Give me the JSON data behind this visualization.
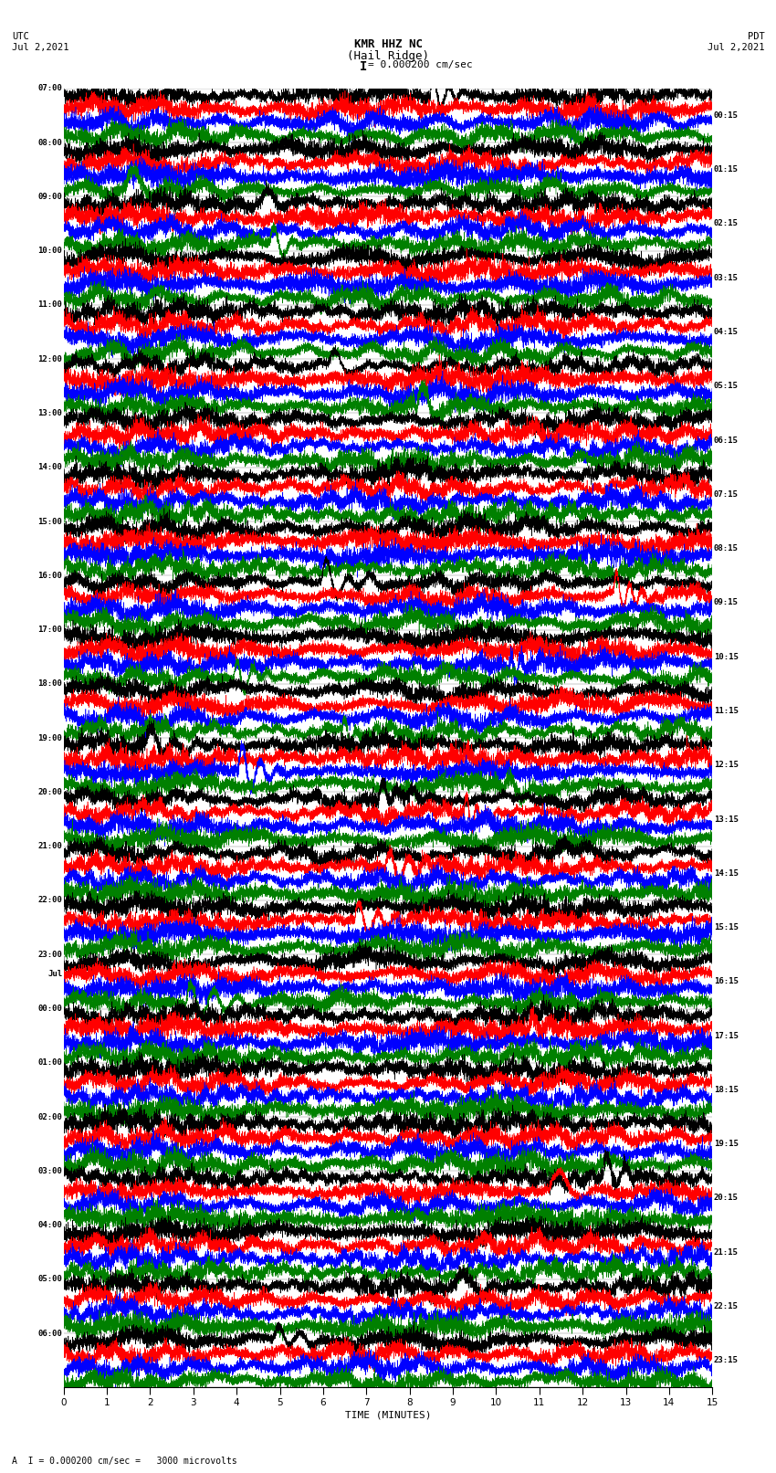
{
  "title_line1": "KMR HHZ NC",
  "title_line2": "(Hail Ridge)",
  "scale_label": "= 0.000200 cm/sec",
  "bottom_label": "A  I = 0.000200 cm/sec =   3000 microvolts",
  "left_header": "UTC",
  "left_date": "Jul 2,2021",
  "right_header": "PDT",
  "right_date": "Jul 2,2021",
  "xlabel": "TIME (MINUTES)",
  "colors": [
    "black",
    "red",
    "blue",
    "green"
  ],
  "bg_color": "#ffffff",
  "left_times_utc": [
    "07:00",
    "08:00",
    "09:00",
    "10:00",
    "11:00",
    "12:00",
    "13:00",
    "14:00",
    "15:00",
    "16:00",
    "17:00",
    "18:00",
    "19:00",
    "20:00",
    "21:00",
    "22:00",
    "23:00",
    "00:00",
    "01:00",
    "02:00",
    "03:00",
    "04:00",
    "05:00",
    "06:00"
  ],
  "right_times_pdt": [
    "00:15",
    "01:15",
    "02:15",
    "03:15",
    "04:15",
    "05:15",
    "06:15",
    "07:15",
    "08:15",
    "09:15",
    "10:15",
    "11:15",
    "12:15",
    "13:15",
    "14:15",
    "15:15",
    "16:15",
    "17:15",
    "18:15",
    "19:15",
    "20:15",
    "21:15",
    "22:15",
    "23:15"
  ],
  "jul_row": 17,
  "n_rows": 24,
  "n_traces_per_row": 4,
  "trace_duration_minutes": 15,
  "noise_seed": 42
}
